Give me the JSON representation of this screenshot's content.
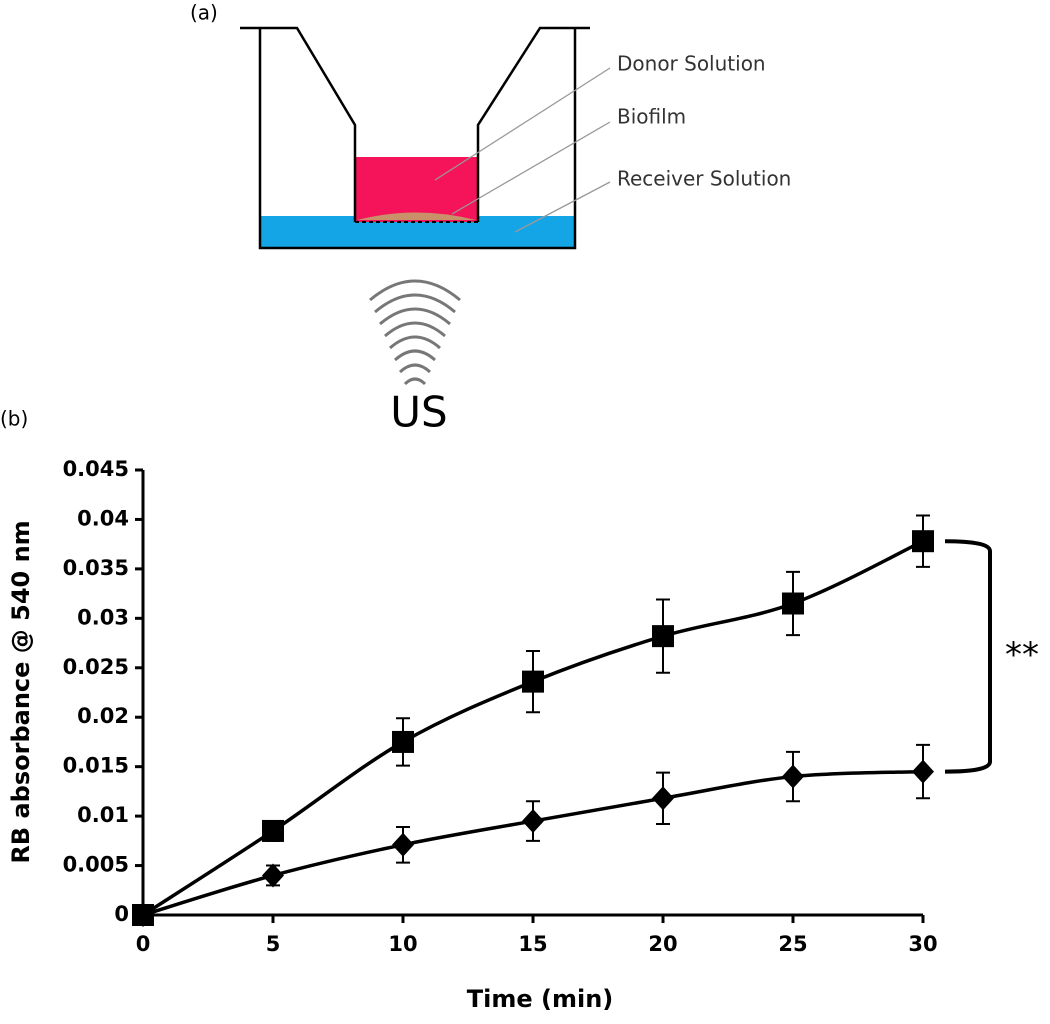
{
  "panel_a": {
    "label": "(a)",
    "donor": "Donor Solution",
    "biofilm": "Biofilm",
    "receiver": "Receiver Solution",
    "source": "US"
  },
  "panel_b": {
    "label": "(b)"
  },
  "chart_data": {
    "type": "line",
    "x_label": "Time (min)",
    "y_label": "RB absorbance @ 540 nm",
    "x": [
      0,
      5,
      10,
      15,
      20,
      25,
      30
    ],
    "series": [
      {
        "color": "#000000",
        "marker": "square",
        "values": [
          0,
          0.0085,
          0.0175,
          0.0236,
          0.0282,
          0.0315,
          0.0378
        ],
        "errors": [
          0,
          0.001,
          0.0024,
          0.0031,
          0.0037,
          0.0032,
          0.0026
        ]
      },
      {
        "color": "#000000",
        "marker": "diamond",
        "values": [
          0,
          0.004,
          0.0071,
          0.0095,
          0.0118,
          0.014,
          0.0145
        ],
        "errors": [
          0,
          0.001,
          0.0018,
          0.002,
          0.0026,
          0.0025,
          0.0027
        ]
      }
    ],
    "xlim": [
      0,
      30
    ],
    "xticks": [
      0,
      5,
      10,
      15,
      20,
      25,
      30
    ],
    "ylim": [
      0,
      0.045
    ],
    "yticks": [
      0,
      0.005,
      0.01,
      0.015,
      0.02,
      0.025,
      0.03,
      0.035,
      0.04,
      0.045
    ],
    "annotation": "**"
  }
}
